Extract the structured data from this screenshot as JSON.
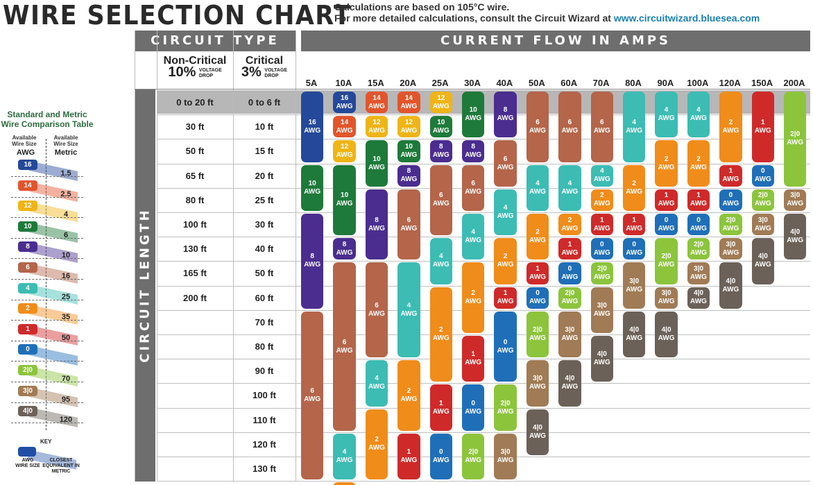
{
  "title": "WIRE SELECTION CHART",
  "note": {
    "line1": "Calculations are based on 105°C wire.",
    "line2_prefix": "For more detailed calculations, consult the Circuit Wizard at ",
    "url": "www.circuitwizard.bluesea.com"
  },
  "headers": {
    "circuit_type": "CIRCUIT TYPE",
    "current_flow": "CURRENT FLOW IN AMPS",
    "circuit_length": "CIRCUIT LENGTH",
    "non_critical": {
      "name": "Non-Critical",
      "pct": "10%",
      "small1": "VOLTAGE",
      "small2": "DROP"
    },
    "critical": {
      "name": "Critical",
      "pct": "3%",
      "small1": "VOLTAGE",
      "small2": "DROP"
    }
  },
  "amps": [
    "5A",
    "10A",
    "15A",
    "20A",
    "25A",
    "30A",
    "40A",
    "50A",
    "60A",
    "70A",
    "80A",
    "90A",
    "100A",
    "120A",
    "150A",
    "200A"
  ],
  "lengths_non_critical": [
    "0 to 20 ft",
    "30 ft",
    "50 ft",
    "65 ft",
    "80 ft",
    "100 ft",
    "130 ft",
    "165 ft",
    "200 ft"
  ],
  "lengths_critical": [
    "0 to 6 ft",
    "10 ft",
    "15 ft",
    "20 ft",
    "25 ft",
    "30 ft",
    "40 ft",
    "50 ft",
    "60 ft",
    "70 ft",
    "80 ft",
    "90 ft",
    "100 ft",
    "110 ft",
    "120 ft",
    "130 ft"
  ],
  "awg_unit": "AWG",
  "gauge_colors": {
    "16": "#24489a",
    "14": "#e2552c",
    "12": "#efb416",
    "10": "#1e7a3a",
    "8": "#4a2d8f",
    "6": "#b4654a",
    "4": "#3cbcb3",
    "2": "#f08c1a",
    "1": "#cf2a2a",
    "0": "#1f6fb8",
    "2|0": "#8cc43c",
    "3|0": "#a07b55",
    "4|0": "#6b6158"
  },
  "grid": [
    [
      [
        "16",
        0,
        3
      ],
      [
        "10",
        3,
        2
      ],
      [
        "8",
        5,
        4
      ],
      [
        "6",
        9,
        7
      ]
    ],
    [
      [
        "16",
        0,
        1
      ],
      [
        "14",
        1,
        1
      ],
      [
        "12",
        2,
        1
      ],
      [
        "10",
        3,
        3
      ],
      [
        "8",
        6,
        1
      ],
      [
        "6",
        7,
        7
      ],
      [
        "4",
        14,
        2
      ],
      [
        "2",
        16,
        1
      ]
    ],
    [
      [
        "14",
        0,
        1
      ],
      [
        "12",
        1,
        1
      ],
      [
        "10",
        2,
        2
      ],
      [
        "8",
        4,
        3
      ],
      [
        "6",
        7,
        4
      ],
      [
        "4",
        11,
        2
      ],
      [
        "2",
        13,
        3
      ]
    ],
    [
      [
        "14",
        0,
        1
      ],
      [
        "12",
        1,
        1
      ],
      [
        "10",
        2,
        1
      ],
      [
        "8",
        3,
        1
      ],
      [
        "6",
        4,
        3
      ],
      [
        "4",
        7,
        4
      ],
      [
        "2",
        11,
        3
      ],
      [
        "1",
        14,
        2
      ]
    ],
    [
      [
        "12",
        0,
        1
      ],
      [
        "10",
        1,
        1
      ],
      [
        "8",
        2,
        1
      ],
      [
        "6",
        3,
        3
      ],
      [
        "4",
        6,
        2
      ],
      [
        "2",
        8,
        4
      ],
      [
        "1",
        12,
        2
      ],
      [
        "0",
        14,
        2
      ]
    ],
    [
      [
        "10",
        0,
        2
      ],
      [
        "8",
        2,
        1
      ],
      [
        "6",
        3,
        2
      ],
      [
        "4",
        5,
        2
      ],
      [
        "2",
        7,
        3
      ],
      [
        "1",
        10,
        2
      ],
      [
        "0",
        12,
        2
      ],
      [
        "2|0",
        14,
        2
      ]
    ],
    [
      [
        "8",
        0,
        2
      ],
      [
        "6",
        2,
        2
      ],
      [
        "4",
        4,
        2
      ],
      [
        "2",
        6,
        2
      ],
      [
        "1",
        8,
        1
      ],
      [
        "0",
        9,
        3
      ],
      [
        "2|0",
        12,
        2
      ],
      [
        "3|0",
        14,
        2
      ]
    ],
    [
      [
        "6",
        0,
        3
      ],
      [
        "4",
        3,
        2
      ],
      [
        "2",
        5,
        2
      ],
      [
        "1",
        7,
        1
      ],
      [
        "0",
        8,
        1
      ],
      [
        "2|0",
        9,
        2
      ],
      [
        "3|0",
        11,
        2
      ],
      [
        "4|0",
        13,
        2
      ]
    ],
    [
      [
        "6",
        0,
        3
      ],
      [
        "4",
        3,
        2
      ],
      [
        "2",
        5,
        1
      ],
      [
        "1",
        6,
        1
      ],
      [
        "0",
        7,
        1
      ],
      [
        "2|0",
        8,
        1
      ],
      [
        "3|0",
        9,
        2
      ],
      [
        "4|0",
        11,
        2
      ]
    ],
    [
      [
        "6",
        0,
        3
      ],
      [
        "4",
        3,
        1
      ],
      [
        "2",
        4,
        1
      ],
      [
        "1",
        5,
        1
      ],
      [
        "0",
        6,
        1
      ],
      [
        "2|0",
        7,
        1
      ],
      [
        "3|0",
        8,
        2
      ],
      [
        "4|0",
        10,
        2
      ]
    ],
    [
      [
        "4",
        0,
        3
      ],
      [
        "2",
        3,
        2
      ],
      [
        "1",
        5,
        1
      ],
      [
        "0",
        6,
        1
      ],
      [
        "3|0",
        7,
        2
      ],
      [
        "4|0",
        9,
        2
      ]
    ],
    [
      [
        "4",
        0,
        2
      ],
      [
        "2",
        2,
        2
      ],
      [
        "1",
        4,
        1
      ],
      [
        "0",
        5,
        1
      ],
      [
        "2|0",
        6,
        2
      ],
      [
        "3|0",
        8,
        1
      ],
      [
        "4|0",
        9,
        2
      ]
    ],
    [
      [
        "4",
        0,
        2
      ],
      [
        "2",
        2,
        2
      ],
      [
        "1",
        4,
        1
      ],
      [
        "0",
        5,
        1
      ],
      [
        "2|0",
        6,
        1
      ],
      [
        "3|0",
        7,
        1
      ],
      [
        "4|0",
        8,
        1
      ]
    ],
    [
      [
        "2",
        0,
        3
      ],
      [
        "1",
        3,
        1
      ],
      [
        "0",
        4,
        1
      ],
      [
        "2|0",
        5,
        1
      ],
      [
        "3|0",
        6,
        1
      ],
      [
        "4|0",
        7,
        2
      ]
    ],
    [
      [
        "1",
        0,
        3
      ],
      [
        "0",
        3,
        1
      ],
      [
        "2|0",
        4,
        1
      ],
      [
        "3|0",
        5,
        1
      ],
      [
        "4|0",
        6,
        2
      ]
    ],
    [
      [
        "2|0",
        0,
        4
      ],
      [
        "3|0",
        4,
        1
      ],
      [
        "4|0",
        5,
        2
      ]
    ]
  ],
  "comparison": {
    "title_line1": "Standard and Metric",
    "title_line2": "Wire Comparison Table",
    "awg_head": "Available Wire Size",
    "metric_head": "Available Wire Size",
    "awg_label": "AWG",
    "metric_label": "Metric",
    "rows": [
      {
        "awg": "16",
        "metric": "1.5"
      },
      {
        "awg": "14",
        "metric": "2.5"
      },
      {
        "awg": "12",
        "metric": "4"
      },
      {
        "awg": "10",
        "metric": "6"
      },
      {
        "awg": "8",
        "metric": "10"
      },
      {
        "awg": "6",
        "metric": "16"
      },
      {
        "awg": "4",
        "metric": "25"
      },
      {
        "awg": "2",
        "metric": "35"
      },
      {
        "awg": "1",
        "metric": "50"
      },
      {
        "awg": "0",
        "metric": ""
      },
      {
        "awg": "2|0",
        "metric": "70"
      },
      {
        "awg": "3|0",
        "metric": "95"
      },
      {
        "awg": "4|0",
        "metric": "120"
      }
    ]
  },
  "key": {
    "title": "KEY",
    "awg": "AWG WIRE SIZE",
    "metric": "CLOSEST EQUIVALENT IN METRIC"
  }
}
